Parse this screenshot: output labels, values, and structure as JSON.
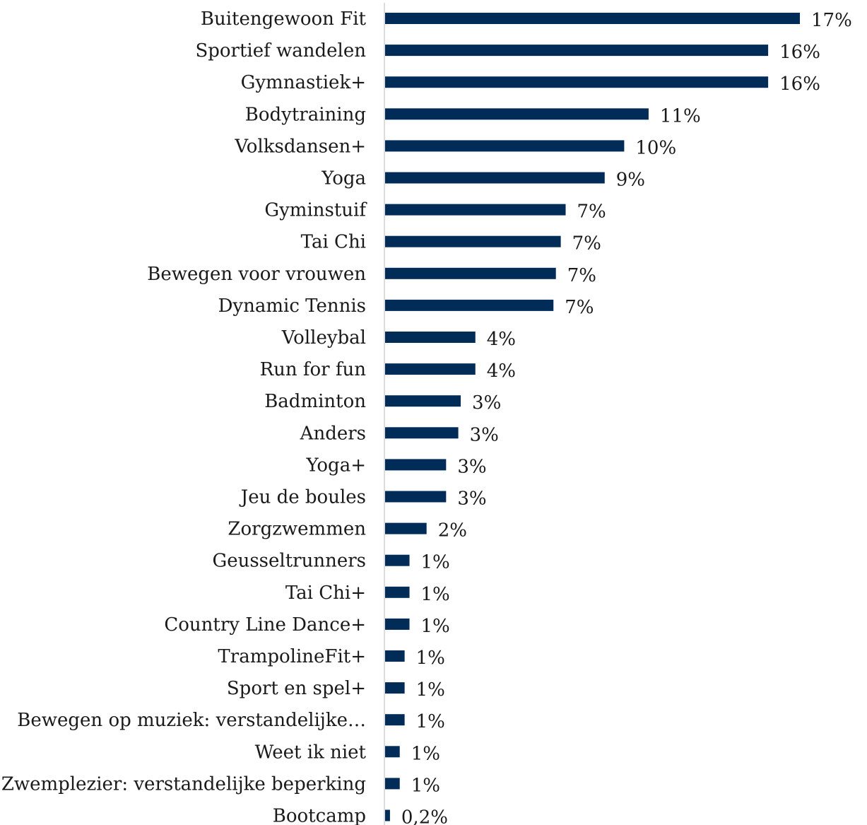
{
  "chart_data": {
    "type": "bar",
    "orientation": "horizontal",
    "title": "",
    "xlabel": "",
    "ylabel": "",
    "grid": false,
    "legend": "none",
    "xlim": [
      0,
      17
    ],
    "categories": [
      "Buitengewoon Fit",
      "Sportief wandelen",
      "Gymnastiek+",
      "Bodytraining",
      "Volksdansen+",
      "Yoga",
      "Gyminstuif",
      "Tai Chi",
      "Bewegen voor vrouwen",
      "Dynamic Tennis",
      "Volleybal",
      "Run for fun",
      "Badminton",
      "Anders",
      "Yoga+",
      "Jeu de boules",
      "Zorgzwemmen",
      "Geusseltrunners",
      "Tai Chi+",
      "Country Line Dance+",
      "TrampolineFit+",
      "Sport en spel+",
      "Bewegen op muziek: verstandelijke…",
      "Weet ik niet",
      "Zwemplezier: verstandelijke beperking",
      "Bootcamp"
    ],
    "values": [
      17,
      15.7,
      15.7,
      10.8,
      9.8,
      9.0,
      7.4,
      7.2,
      7.0,
      6.9,
      3.7,
      3.7,
      3.1,
      3.0,
      2.5,
      2.5,
      1.7,
      1.0,
      1.0,
      1.0,
      0.8,
      0.8,
      0.8,
      0.6,
      0.6,
      0.2
    ],
    "value_labels": [
      "17%",
      "16%",
      "16%",
      "11%",
      "10%",
      "9%",
      "7%",
      "7%",
      "7%",
      "7%",
      "4%",
      "4%",
      "3%",
      "3%",
      "3%",
      "3%",
      "2%",
      "1%",
      "1%",
      "1%",
      "1%",
      "1%",
      "1%",
      "1%",
      "1%",
      "0,2%"
    ],
    "colors": {
      "bar": "#002C57",
      "axis": "#d0d0d0",
      "text": "#1a1a1a"
    }
  }
}
